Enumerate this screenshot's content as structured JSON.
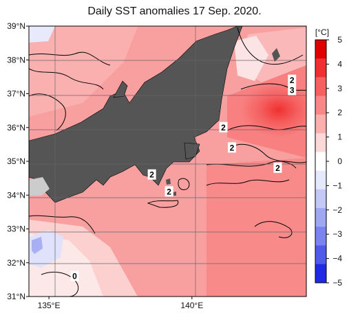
{
  "title": "Daily SST anomalies 17 Sep. 2020.",
  "colors": {
    "land": "#555555",
    "grid": "#666666",
    "contour": "#000000"
  },
  "map": {
    "lat_min": 31,
    "lat_max": 39,
    "lon_min": 134.3,
    "lon_max": 144,
    "lat_labels": [
      "31°N",
      "32°N",
      "33°N",
      "34°N",
      "35°N",
      "36°N",
      "37°N",
      "38°N",
      "39°N"
    ],
    "lon_labels": [
      "135°E",
      "140°E"
    ],
    "contour_labels": [
      {
        "text": "2",
        "lon": 143.5,
        "lat": 37.4
      },
      {
        "text": "3",
        "lon": 143.5,
        "lat": 37.1
      },
      {
        "text": "2",
        "lon": 141.1,
        "lat": 36.0
      },
      {
        "text": "2",
        "lon": 141.4,
        "lat": 35.4
      },
      {
        "text": "2",
        "lon": 143.0,
        "lat": 34.8
      },
      {
        "text": "2",
        "lon": 138.6,
        "lat": 34.6
      },
      {
        "text": "2",
        "lon": 139.2,
        "lat": 34.1
      },
      {
        "text": "0",
        "lon": 135.9,
        "lat": 31.6
      }
    ]
  },
  "colorbar": {
    "unit": "[°C]",
    "ticks": [
      "5",
      "4",
      "3",
      "2",
      "1",
      "0",
      "−1",
      "−2",
      "−3",
      "−4",
      "−5"
    ],
    "colors": [
      "#e00000",
      "#f03030",
      "#f56060",
      "#f88888",
      "#fbb0b0",
      "#fdd8d8",
      "#ffffff",
      "#e6e8fb",
      "#c4c8f6",
      "#9fa6f2",
      "#7a83ee",
      "#4f5ae8",
      "#1f2be2"
    ]
  }
}
